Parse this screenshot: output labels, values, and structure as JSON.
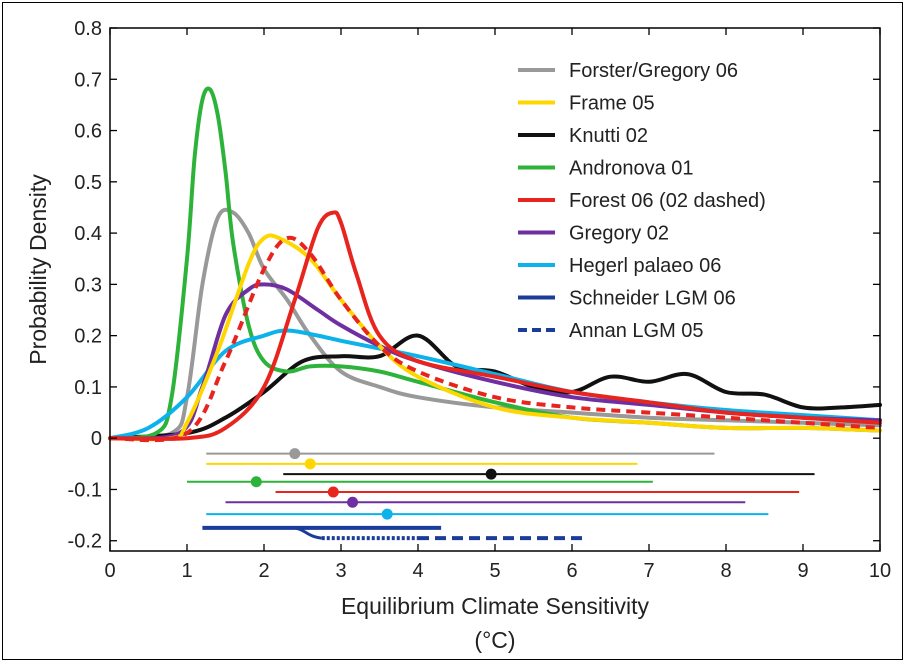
{
  "chart_data": {
    "type": "line",
    "title": "",
    "xlabel": "Equilibrium Climate Sensitivity",
    "xlabel_unit": "(°C)",
    "ylabel": "Probability Density",
    "xlim": [
      0,
      10
    ],
    "ylim": [
      -0.22,
      0.8
    ],
    "xticks": [
      "0",
      "1",
      "2",
      "3",
      "4",
      "5",
      "6",
      "7",
      "8",
      "9",
      "10"
    ],
    "yticks": [
      "-0.2",
      "-0.1",
      "0",
      "0.1",
      "0.2",
      "0.3",
      "0.4",
      "0.5",
      "0.6",
      "0.7",
      "0.8"
    ],
    "legend_position": "top-right",
    "grid": false,
    "series": [
      {
        "name": "Forster/Gregory 06",
        "color": "#999999",
        "style": "solid",
        "x": [
          0,
          0.8,
          1.0,
          1.2,
          1.4,
          1.6,
          1.8,
          2.0,
          2.3,
          2.6,
          3.0,
          3.5,
          4.0,
          5.0,
          6.0,
          7.0,
          8.0,
          9.0,
          10.0
        ],
        "y": [
          0.0,
          0.01,
          0.08,
          0.3,
          0.43,
          0.44,
          0.4,
          0.33,
          0.27,
          0.2,
          0.13,
          0.1,
          0.08,
          0.06,
          0.05,
          0.04,
          0.035,
          0.03,
          0.025
        ],
        "range": [
          1.25,
          7.85
        ],
        "median": 2.4,
        "range_y": -0.03
      },
      {
        "name": "Frame 05",
        "color": "#ffd700",
        "style": "solid",
        "x": [
          0,
          0.8,
          1.0,
          1.4,
          1.8,
          2.0,
          2.2,
          2.6,
          3.0,
          3.5,
          4.0,
          5.0,
          6.0,
          7.0,
          8.0,
          9.0,
          10.0
        ],
        "y": [
          0.0,
          0.0,
          0.03,
          0.17,
          0.34,
          0.39,
          0.39,
          0.35,
          0.27,
          0.18,
          0.12,
          0.06,
          0.04,
          0.03,
          0.02,
          0.02,
          0.015
        ],
        "range": [
          1.25,
          6.85
        ],
        "median": 2.6,
        "range_y": -0.05
      },
      {
        "name": "Knutti 02",
        "color": "#111111",
        "style": "solid",
        "x": [
          0,
          1.0,
          1.5,
          2.0,
          2.5,
          3.0,
          3.5,
          4.0,
          4.5,
          5.0,
          5.5,
          6.0,
          6.5,
          7.0,
          7.5,
          8.0,
          8.5,
          9.0,
          9.5,
          10.0
        ],
        "y": [
          0.0,
          0.01,
          0.04,
          0.09,
          0.15,
          0.16,
          0.16,
          0.2,
          0.14,
          0.13,
          0.1,
          0.09,
          0.12,
          0.11,
          0.125,
          0.09,
          0.085,
          0.06,
          0.06,
          0.065
        ],
        "range": [
          2.25,
          9.15
        ],
        "median": 4.95,
        "range_y": -0.07
      },
      {
        "name": "Andronova 01",
        "color": "#2db33a",
        "style": "solid",
        "x": [
          0,
          0.6,
          0.8,
          1.0,
          1.1,
          1.2,
          1.3,
          1.4,
          1.5,
          1.6,
          1.8,
          2.0,
          2.3,
          2.6,
          3.0,
          3.5,
          4.0,
          5.0,
          6.0,
          7.0,
          8.0,
          9.0,
          10.0
        ],
        "y": [
          0.0,
          0.01,
          0.08,
          0.35,
          0.55,
          0.66,
          0.68,
          0.63,
          0.52,
          0.38,
          0.22,
          0.15,
          0.13,
          0.14,
          0.14,
          0.13,
          0.11,
          0.07,
          0.04,
          0.03,
          0.02,
          0.02,
          0.015
        ],
        "range": [
          1.0,
          7.05
        ],
        "median": 1.9,
        "range_y": -0.085
      },
      {
        "name": "Forest 06 (02 dashed)",
        "color": "#e8241f",
        "style": "solid",
        "x": [
          0,
          1.0,
          1.5,
          2.0,
          2.4,
          2.7,
          2.9,
          3.0,
          3.2,
          3.5,
          4.0,
          5.0,
          6.0,
          7.0,
          8.0,
          9.0,
          10.0
        ],
        "y": [
          0.0,
          0.0,
          0.02,
          0.1,
          0.27,
          0.41,
          0.44,
          0.42,
          0.32,
          0.2,
          0.15,
          0.12,
          0.09,
          0.07,
          0.05,
          0.04,
          0.03
        ],
        "range": [
          2.15,
          8.95
        ],
        "median": 2.9,
        "range_y": -0.105
      },
      {
        "name": "Forest 02",
        "color": "#e8241f",
        "style": "dashed",
        "x": [
          0,
          1.0,
          1.5,
          2.0,
          2.3,
          2.6,
          3.0,
          3.5,
          4.0,
          5.0,
          6.0,
          7.0,
          8.0,
          9.0,
          10.0
        ],
        "y": [
          0.0,
          0.01,
          0.15,
          0.33,
          0.39,
          0.36,
          0.27,
          0.18,
          0.13,
          0.08,
          0.06,
          0.05,
          0.04,
          0.03,
          0.02
        ]
      },
      {
        "name": "Gregory 02",
        "color": "#6f2fa0",
        "style": "solid",
        "x": [
          0,
          0.9,
          1.2,
          1.5,
          1.8,
          2.0,
          2.3,
          2.7,
          3.0,
          3.5,
          4.0,
          5.0,
          6.0,
          7.0,
          8.0,
          9.0,
          10.0
        ],
        "y": [
          0.0,
          0.01,
          0.1,
          0.24,
          0.29,
          0.3,
          0.29,
          0.25,
          0.22,
          0.18,
          0.15,
          0.11,
          0.08,
          0.065,
          0.05,
          0.04,
          0.035
        ],
        "range": [
          1.5,
          8.25
        ],
        "median": 3.15,
        "range_y": -0.125
      },
      {
        "name": "Hegerl palaeo 06",
        "color": "#0cb2ea",
        "style": "solid",
        "x": [
          0,
          0.5,
          1.0,
          1.5,
          2.0,
          2.3,
          2.7,
          3.0,
          3.5,
          4.0,
          5.0,
          6.0,
          7.0,
          8.0,
          9.0,
          10.0
        ],
        "y": [
          0.0,
          0.02,
          0.08,
          0.17,
          0.2,
          0.21,
          0.2,
          0.19,
          0.175,
          0.16,
          0.125,
          0.09,
          0.07,
          0.055,
          0.045,
          0.035
        ],
        "range": [
          1.25,
          8.55
        ],
        "median": 3.6,
        "range_y": -0.148
      },
      {
        "name": "Schneider LGM 06",
        "color": "#1c3c99",
        "style": "solid",
        "range": [
          1.2,
          4.3
        ],
        "range_y": -0.175
      },
      {
        "name": "Annan LGM 05",
        "color": "#1c3c99",
        "style": "dashed",
        "range": [
          4.0,
          6.2
        ],
        "range_y": -0.195
      }
    ]
  },
  "colors": {
    "gray": "#999999",
    "yellow": "#ffd700",
    "black": "#111111",
    "green": "#2db33a",
    "red": "#e8241f",
    "purple": "#6f2fa0",
    "cyan": "#0cb2ea",
    "navy": "#1c3c99"
  }
}
